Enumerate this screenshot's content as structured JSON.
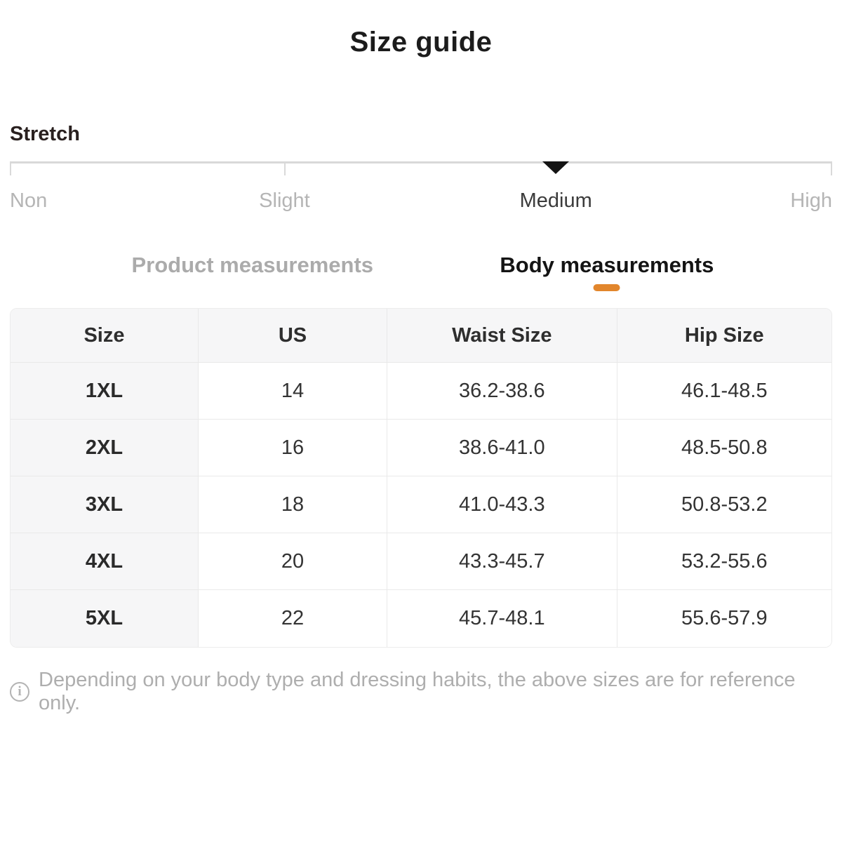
{
  "page": {
    "title": "Size guide"
  },
  "stretch": {
    "label": "Stretch",
    "selected_value": "Medium",
    "options": [
      {
        "label": "Non",
        "selected": false
      },
      {
        "label": "Slight",
        "selected": false
      },
      {
        "label": "Medium",
        "selected": true
      },
      {
        "label": "High",
        "selected": false
      }
    ]
  },
  "tabs": [
    {
      "label": "Product measurements",
      "active": false
    },
    {
      "label": "Body measurements",
      "active": true
    }
  ],
  "size_table": {
    "columns": [
      "Size",
      "US",
      "Waist Size",
      "Hip Size"
    ],
    "rows": [
      [
        "1XL",
        "14",
        "36.2-38.6",
        "46.1-48.5"
      ],
      [
        "2XL",
        "16",
        "38.6-41.0",
        "48.5-50.8"
      ],
      [
        "3XL",
        "18",
        "41.0-43.3",
        "50.8-53.2"
      ],
      [
        "4XL",
        "20",
        "43.3-45.7",
        "53.2-55.6"
      ],
      [
        "5XL",
        "22",
        "45.7-48.1",
        "55.6-57.9"
      ]
    ]
  },
  "footer": {
    "info_icon": "info-icon",
    "note": "Depending on your body type and dressing habits, the above sizes are for reference only."
  },
  "colors": {
    "accent_orange": "#e2862c",
    "marker_black": "#141414",
    "inactive_gray": "#b5b5b5",
    "table_header_bg": "#f6f6f7",
    "table_border": "#e9e9e9",
    "slider_track": "#d9d9d9"
  }
}
